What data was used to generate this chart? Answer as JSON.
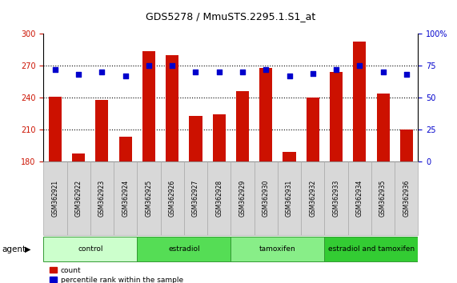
{
  "title": "GDS5278 / MmuSTS.2295.1.S1_at",
  "samples": [
    "GSM362921",
    "GSM362922",
    "GSM362923",
    "GSM362924",
    "GSM362925",
    "GSM362926",
    "GSM362927",
    "GSM362928",
    "GSM362929",
    "GSM362930",
    "GSM362931",
    "GSM362932",
    "GSM362933",
    "GSM362934",
    "GSM362935",
    "GSM362936"
  ],
  "counts": [
    241,
    187,
    238,
    203,
    284,
    280,
    223,
    224,
    246,
    268,
    189,
    240,
    264,
    293,
    244,
    210
  ],
  "percentiles": [
    72,
    68,
    70,
    67,
    75,
    75,
    70,
    70,
    70,
    72,
    67,
    69,
    72,
    75,
    70,
    68
  ],
  "groups": [
    {
      "label": "control",
      "start": 0,
      "end": 3,
      "color": "#ccffcc"
    },
    {
      "label": "estradiol",
      "start": 4,
      "end": 7,
      "color": "#55dd55"
    },
    {
      "label": "tamoxifen",
      "start": 8,
      "end": 11,
      "color": "#88ee88"
    },
    {
      "label": "estradiol and tamoxifen",
      "start": 12,
      "end": 15,
      "color": "#33cc33"
    }
  ],
  "ylim_left": [
    180,
    300
  ],
  "ylim_right": [
    0,
    100
  ],
  "yticks_left": [
    180,
    210,
    240,
    270,
    300
  ],
  "yticks_right": [
    0,
    25,
    50,
    75,
    100
  ],
  "bar_color": "#cc1100",
  "dot_color": "#0000cc",
  "bar_width": 0.55,
  "agent_label": "agent",
  "legend_count": "count",
  "legend_percentile": "percentile rank within the sample",
  "background_color": "#ffffff",
  "plot_bg": "#ffffff",
  "tick_label_color_left": "#cc1100",
  "tick_label_color_right": "#0000cc",
  "grid_yticks": [
    210,
    240,
    270
  ],
  "cell_bg": "#d8d8d8",
  "cell_edge": "#aaaaaa"
}
